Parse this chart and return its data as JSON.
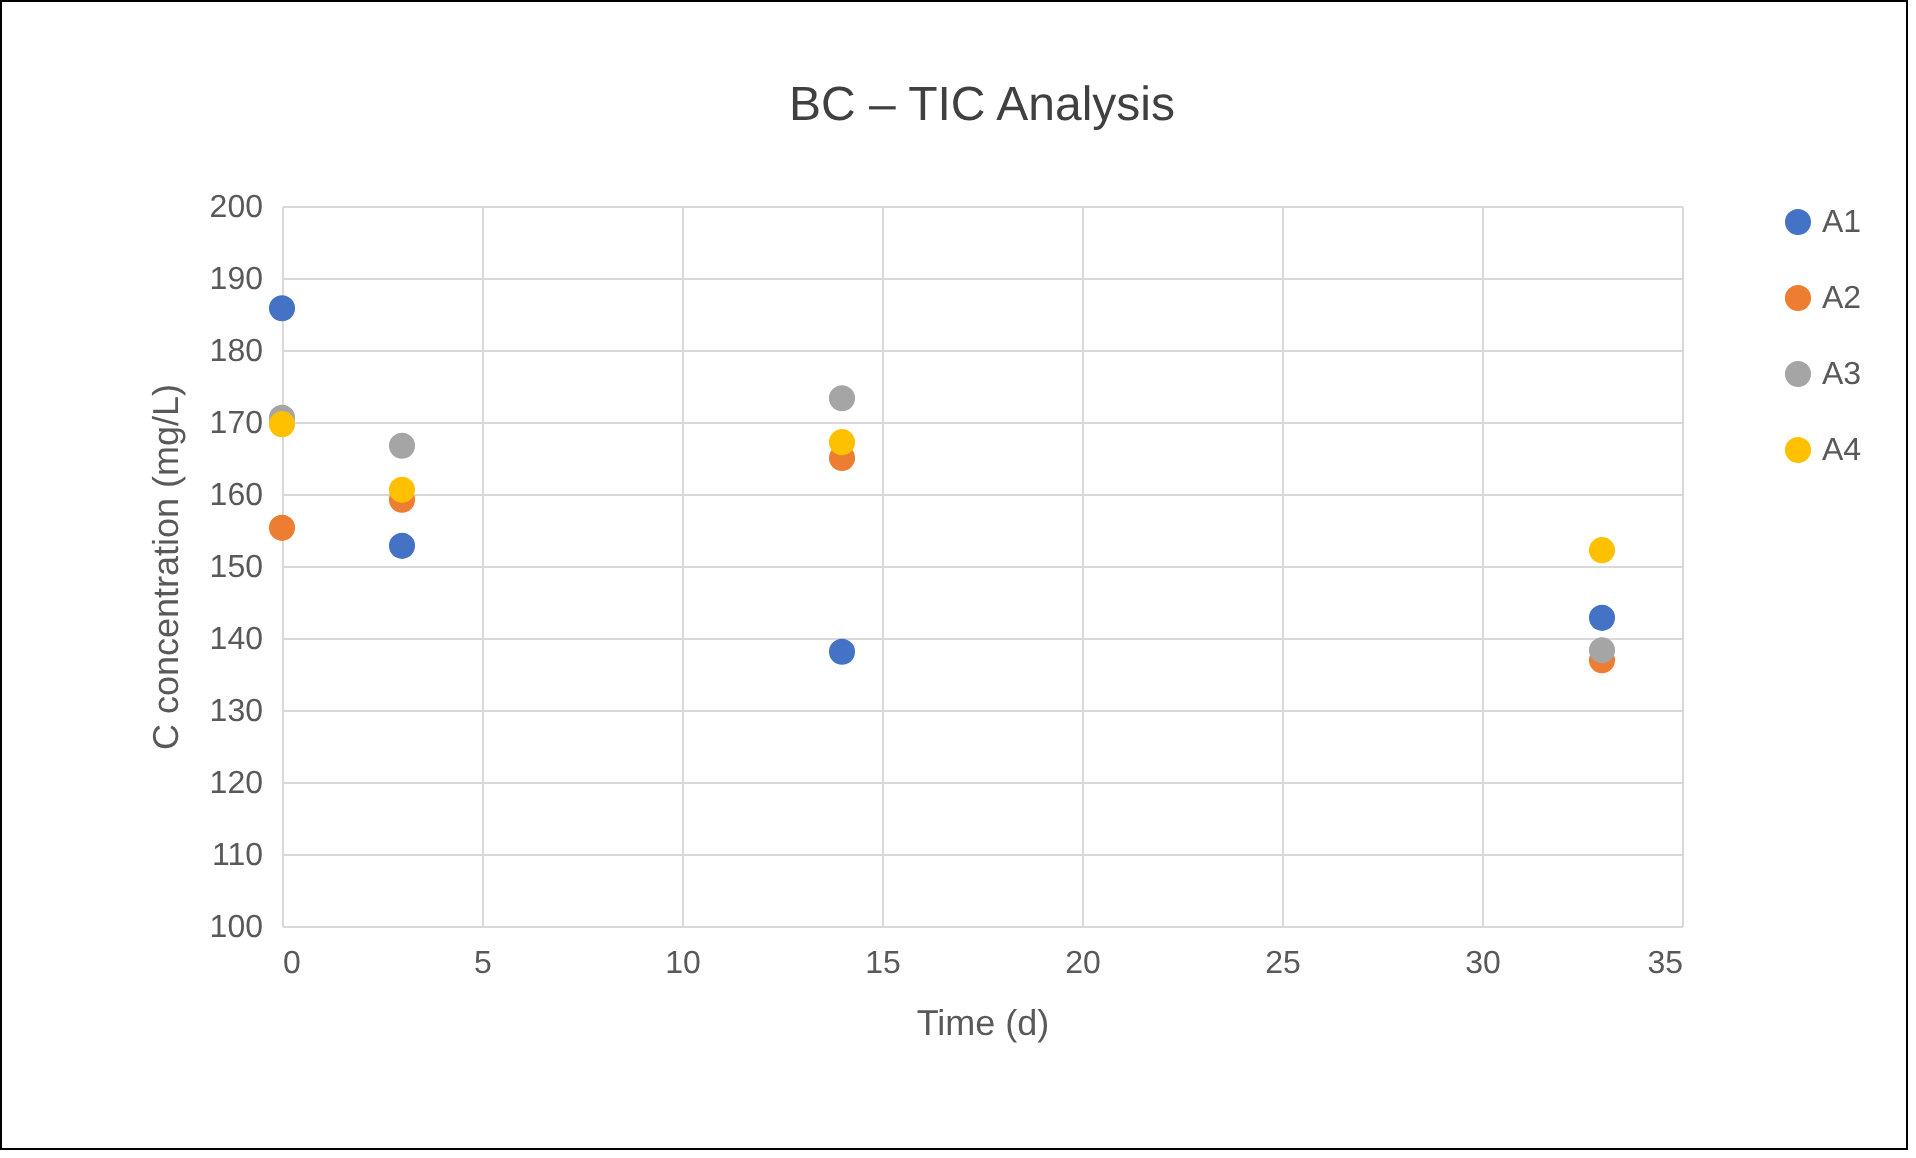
{
  "chart_data": {
    "type": "scatter",
    "title": "BC – TIC Analysis",
    "xlabel": "Time (d)",
    "ylabel": "C concentration (mg/L)",
    "x": [
      0,
      3,
      14,
      33
    ],
    "series": [
      {
        "name": "A1",
        "color": "#4472c4",
        "values": [
          185.8,
          152.8,
          138.1,
          142.8
        ]
      },
      {
        "name": "A2",
        "color": "#ed7d31",
        "values": [
          155.3,
          159.2,
          165,
          136.9
        ]
      },
      {
        "name": "A3",
        "color": "#a5a5a5",
        "values": [
          170.6,
          166.7,
          173.3,
          138.3
        ]
      },
      {
        "name": "A4",
        "color": "#ffc000",
        "values": [
          169.7,
          160.6,
          167.2,
          152.2
        ]
      }
    ],
    "xlim": [
      0,
      35
    ],
    "xticks": [
      0,
      5,
      10,
      15,
      20,
      25,
      30,
      35
    ],
    "ylim": [
      100,
      200
    ],
    "yticks": [
      100,
      110,
      120,
      130,
      140,
      150,
      160,
      170,
      180,
      190,
      200
    ],
    "grid": true,
    "legend": "right",
    "marker": "circle"
  }
}
